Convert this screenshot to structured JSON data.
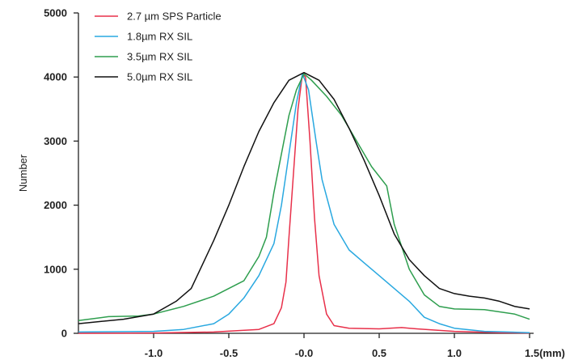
{
  "chart_data": {
    "type": "line",
    "title": "",
    "xlabel": "",
    "ylabel": "Number",
    "x_unit_label": "1.5(mm)",
    "xlim": [
      -1.5,
      1.5
    ],
    "ylim": [
      0,
      5000
    ],
    "x_ticks": [
      -1.0,
      -0.5,
      0.0,
      0.5,
      1.0,
      1.5
    ],
    "x_tick_labels": [
      "-1.0",
      "-0.5",
      "-0.0",
      "0.5",
      "1.0",
      "1.5(mm)"
    ],
    "y_ticks": [
      0,
      1000,
      2000,
      3000,
      4000,
      5000
    ],
    "y_tick_labels": [
      "0",
      "1000",
      "2000",
      "3000",
      "4000",
      "5000"
    ],
    "grid": false,
    "legend_position": "top-left",
    "series": [
      {
        "name": "2.7 µm  SPS Particle",
        "color": "#e8304a",
        "points": [
          [
            -1.5,
            0
          ],
          [
            -1.0,
            5
          ],
          [
            -0.6,
            20
          ],
          [
            -0.3,
            60
          ],
          [
            -0.2,
            150
          ],
          [
            -0.15,
            400
          ],
          [
            -0.12,
            800
          ],
          [
            -0.1,
            1500
          ],
          [
            -0.07,
            2500
          ],
          [
            -0.04,
            3500
          ],
          [
            -0.01,
            4050
          ],
          [
            0.01,
            4000
          ],
          [
            0.04,
            3000
          ],
          [
            0.07,
            1800
          ],
          [
            0.1,
            900
          ],
          [
            0.15,
            300
          ],
          [
            0.2,
            120
          ],
          [
            0.3,
            80
          ],
          [
            0.5,
            70
          ],
          [
            0.65,
            90
          ],
          [
            0.75,
            70
          ],
          [
            1.0,
            30
          ],
          [
            1.3,
            10
          ],
          [
            1.5,
            5
          ]
        ]
      },
      {
        "name": "1.8µm  RX SIL",
        "color": "#29a8e0",
        "points": [
          [
            -1.5,
            20
          ],
          [
            -1.0,
            30
          ],
          [
            -0.8,
            60
          ],
          [
            -0.6,
            150
          ],
          [
            -0.5,
            300
          ],
          [
            -0.4,
            550
          ],
          [
            -0.3,
            900
          ],
          [
            -0.2,
            1400
          ],
          [
            -0.15,
            2000
          ],
          [
            -0.1,
            2800
          ],
          [
            -0.05,
            3600
          ],
          [
            -0.01,
            4050
          ],
          [
            0.03,
            3800
          ],
          [
            0.08,
            3000
          ],
          [
            0.12,
            2400
          ],
          [
            0.2,
            1700
          ],
          [
            0.3,
            1300
          ],
          [
            0.4,
            1100
          ],
          [
            0.5,
            900
          ],
          [
            0.6,
            700
          ],
          [
            0.7,
            500
          ],
          [
            0.8,
            250
          ],
          [
            0.9,
            150
          ],
          [
            1.0,
            80
          ],
          [
            1.2,
            30
          ],
          [
            1.5,
            10
          ]
        ]
      },
      {
        "name": "3.5µm  RX SIL",
        "color": "#2e9e4e",
        "points": [
          [
            -1.5,
            200
          ],
          [
            -1.3,
            260
          ],
          [
            -1.1,
            270
          ],
          [
            -1.0,
            300
          ],
          [
            -0.8,
            420
          ],
          [
            -0.6,
            580
          ],
          [
            -0.4,
            820
          ],
          [
            -0.3,
            1200
          ],
          [
            -0.25,
            1500
          ],
          [
            -0.2,
            2200
          ],
          [
            -0.15,
            2800
          ],
          [
            -0.1,
            3400
          ],
          [
            -0.05,
            3800
          ],
          [
            0.0,
            4050
          ],
          [
            0.05,
            3950
          ],
          [
            0.15,
            3700
          ],
          [
            0.25,
            3400
          ],
          [
            0.35,
            3000
          ],
          [
            0.45,
            2600
          ],
          [
            0.55,
            2300
          ],
          [
            0.6,
            1700
          ],
          [
            0.7,
            1000
          ],
          [
            0.8,
            600
          ],
          [
            0.9,
            420
          ],
          [
            1.0,
            380
          ],
          [
            1.2,
            370
          ],
          [
            1.4,
            300
          ],
          [
            1.5,
            220
          ]
        ]
      },
      {
        "name": "5.0µm  RX SIL",
        "color": "#111111",
        "points": [
          [
            -1.5,
            150
          ],
          [
            -1.2,
            220
          ],
          [
            -1.0,
            300
          ],
          [
            -0.85,
            500
          ],
          [
            -0.75,
            700
          ],
          [
            -0.7,
            950
          ],
          [
            -0.6,
            1450
          ],
          [
            -0.5,
            2000
          ],
          [
            -0.4,
            2600
          ],
          [
            -0.3,
            3150
          ],
          [
            -0.2,
            3600
          ],
          [
            -0.1,
            3950
          ],
          [
            0.0,
            4070
          ],
          [
            0.1,
            3950
          ],
          [
            0.2,
            3650
          ],
          [
            0.3,
            3200
          ],
          [
            0.4,
            2700
          ],
          [
            0.5,
            2150
          ],
          [
            0.6,
            1550
          ],
          [
            0.7,
            1150
          ],
          [
            0.8,
            900
          ],
          [
            0.9,
            700
          ],
          [
            1.0,
            620
          ],
          [
            1.1,
            580
          ],
          [
            1.2,
            550
          ],
          [
            1.3,
            500
          ],
          [
            1.4,
            420
          ],
          [
            1.5,
            380
          ]
        ]
      }
    ]
  }
}
